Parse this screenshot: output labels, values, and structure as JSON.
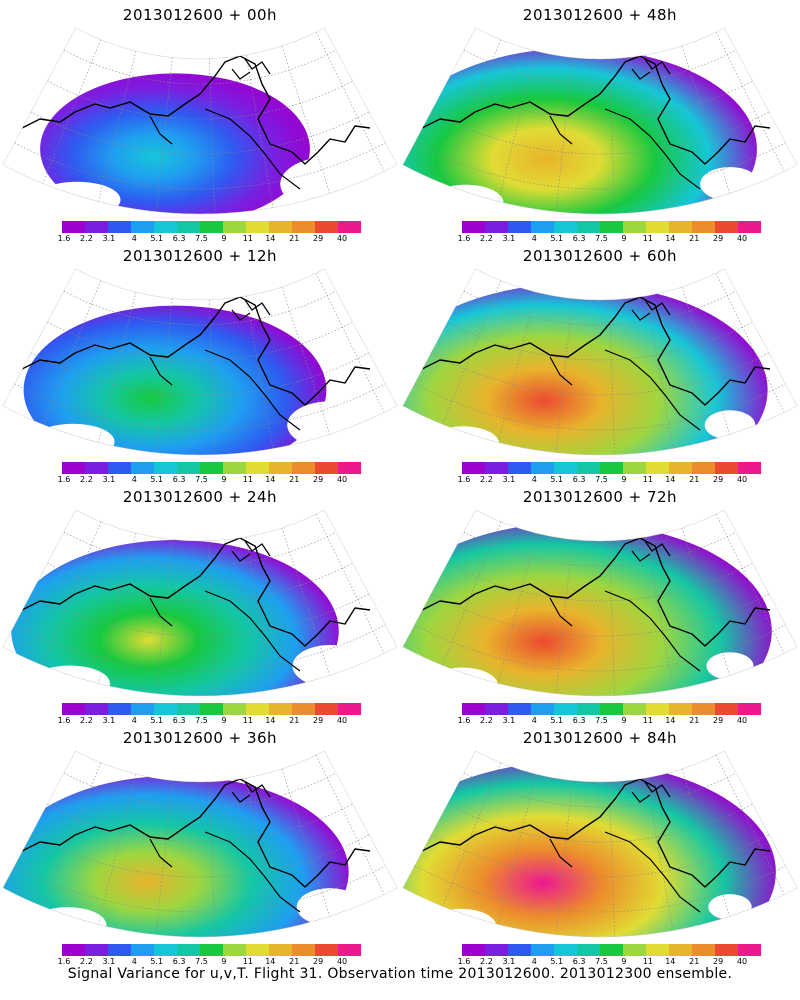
{
  "caption": "Signal Variance for u,v,T. Flight 31. Observation time 2013012600. 2013012300 ensemble.",
  "colorbar": {
    "labels": [
      "1.6",
      "2.2",
      "3.1",
      "4",
      "5.1",
      "6.3",
      "7.5",
      "9",
      "11",
      "14",
      "21",
      "29",
      "40"
    ],
    "colors": [
      "#9b00cf",
      "#7a1fe0",
      "#2f5af0",
      "#1f9ef0",
      "#16c6d8",
      "#14c7a4",
      "#18c840",
      "#9ed640",
      "#e0dc34",
      "#e8b42c",
      "#ec8c2c",
      "#ec4a30",
      "#ec1890"
    ]
  },
  "panels": [
    {
      "title": "2013012600 + 00h",
      "intensity": 0.15
    },
    {
      "title": "2013012600 + 48h",
      "intensity": 0.72
    },
    {
      "title": "2013012600 + 12h",
      "intensity": 0.35
    },
    {
      "title": "2013012600 + 60h",
      "intensity": 0.85
    },
    {
      "title": "2013012600 + 24h",
      "intensity": 0.5
    },
    {
      "title": "2013012600 + 72h",
      "intensity": 0.9
    },
    {
      "title": "2013012600 + 36h",
      "intensity": 0.62
    },
    {
      "title": "2013012600 + 84h",
      "intensity": 0.95
    }
  ]
}
